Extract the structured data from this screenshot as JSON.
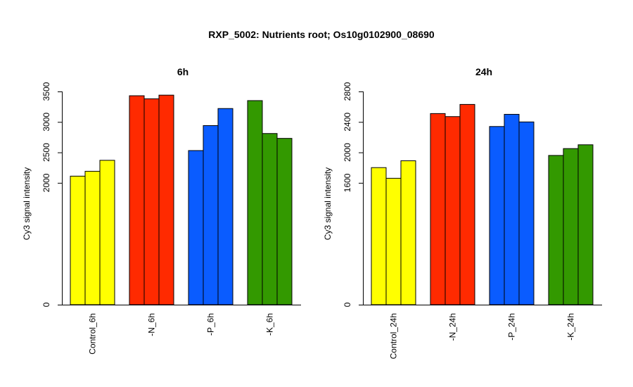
{
  "page_title": "RXP_5002: Nutrients root; Os10g0102900_08690",
  "chart_data": [
    {
      "type": "bar",
      "title": "6h",
      "ylabel": "Cy3 signal intensity",
      "yticks": [
        0,
        2000,
        2500,
        3000,
        3500
      ],
      "ylim": [
        0,
        3500
      ],
      "groups": [
        {
          "label": "Control_6h",
          "color": "#ffff00",
          "values": [
            2110,
            2190,
            2370
          ]
        },
        {
          "label": "-N_6h",
          "color": "#ff2a00",
          "values": [
            3430,
            3380,
            3440
          ]
        },
        {
          "label": "-P_6h",
          "color": "#0a5cff",
          "values": [
            2530,
            2940,
            3220
          ]
        },
        {
          "label": "-K_6h",
          "color": "#339900",
          "values": [
            3350,
            2810,
            2730
          ]
        }
      ]
    },
    {
      "type": "bar",
      "title": "24h",
      "ylabel": "Cy3 signal intensity",
      "yticks": [
        0,
        1600,
        2000,
        2400,
        2800
      ],
      "ylim": [
        0,
        2800
      ],
      "groups": [
        {
          "label": "Control_24h",
          "color": "#ffff00",
          "values": [
            1800,
            1660,
            1890
          ]
        },
        {
          "label": "-N_24h",
          "color": "#ff2a00",
          "values": [
            2510,
            2470,
            2630
          ]
        },
        {
          "label": "-P_24h",
          "color": "#0a5cff",
          "values": [
            2340,
            2500,
            2400
          ]
        },
        {
          "label": "-K_24h",
          "color": "#339900",
          "values": [
            1960,
            2050,
            2100
          ]
        }
      ]
    }
  ]
}
